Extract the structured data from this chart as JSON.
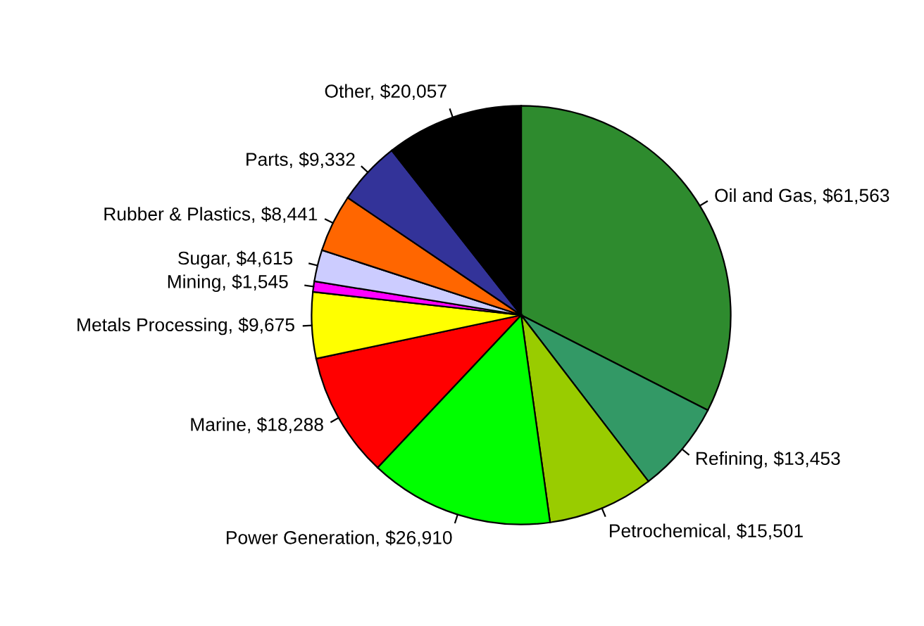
{
  "chart_data": {
    "type": "pie",
    "categories": [
      "Oil and Gas",
      "Refining",
      "Petrochemical",
      "Power Generation",
      "Marine",
      "Metals Processing",
      "Mining",
      "Sugar",
      "Rubber & Plastics",
      "Parts",
      "Other"
    ],
    "values": [
      61563,
      13453,
      15501,
      26910,
      18288,
      9675,
      1545,
      4615,
      8441,
      9332,
      20057
    ],
    "value_labels": [
      "$61,563",
      "$13,453",
      "$15,501",
      "$26,910",
      "$18,288",
      "$9,675",
      "$1,545",
      "$4,615",
      "$8,441",
      "$9,332",
      "$20,057"
    ],
    "colors": [
      "#2e8b2e",
      "#339966",
      "#99cc00",
      "#00ff00",
      "#ff0000",
      "#ffff00",
      "#ff00ff",
      "#ccccff",
      "#ff6600",
      "#333399",
      "#000000"
    ]
  }
}
